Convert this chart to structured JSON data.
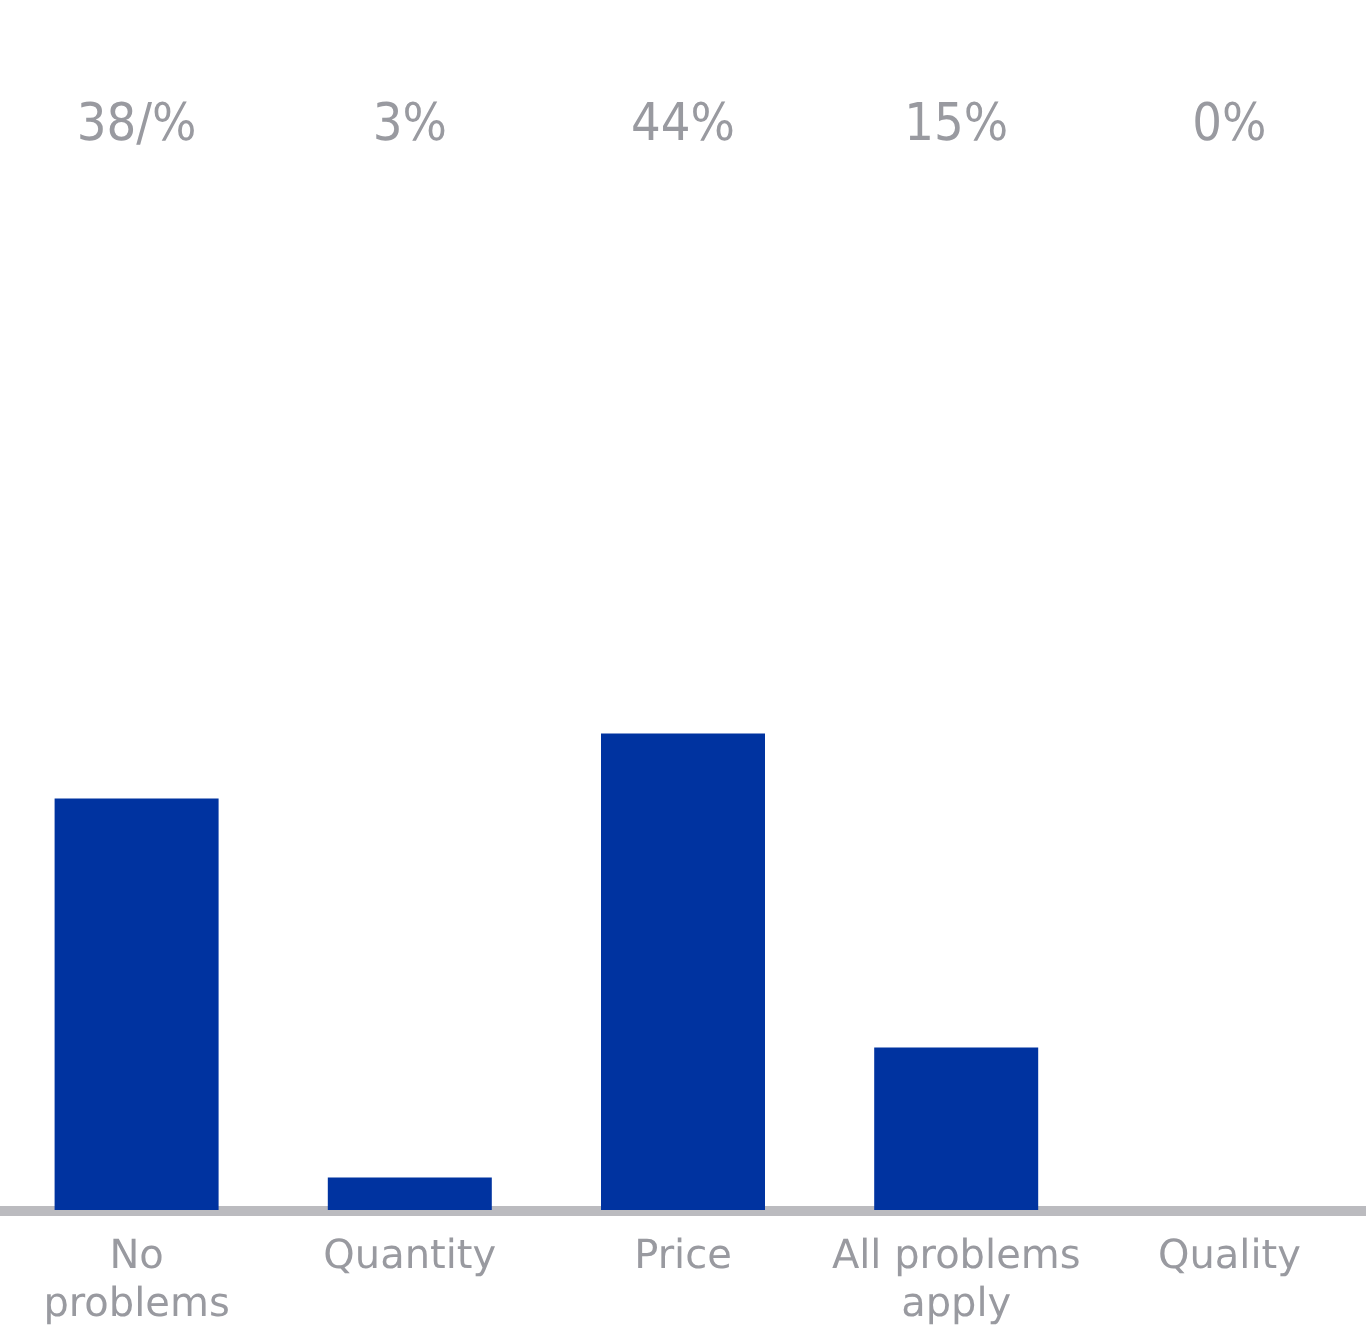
{
  "chart_data": {
    "type": "bar",
    "categories": [
      "No\nproblems",
      "Quantity",
      "Price",
      "All problems\napply",
      "Quality"
    ],
    "values": [
      38,
      3,
      44,
      15,
      0
    ],
    "value_labels": [
      "38/%",
      "3%",
      "44%",
      "15%",
      "0%"
    ],
    "color": "#0033a0",
    "grid": false
  }
}
